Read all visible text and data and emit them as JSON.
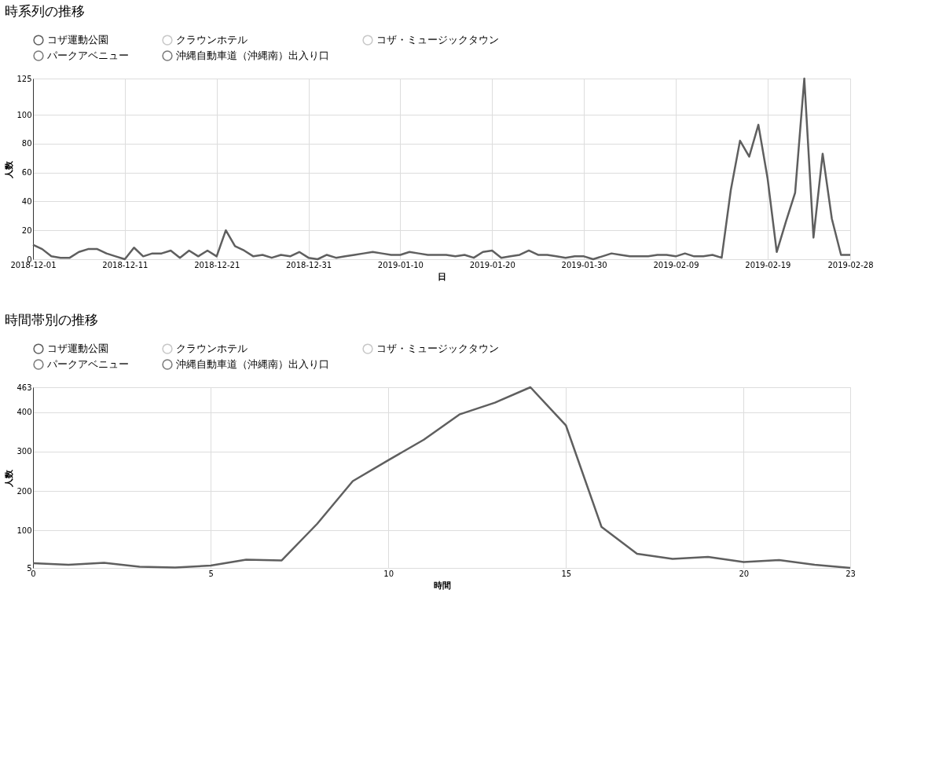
{
  "chart_data": [
    {
      "type": "line",
      "title": "時系列の推移",
      "xlabel": "日",
      "ylabel": "人数",
      "grid": true,
      "legend": "top",
      "x": [
        "2018-12-01",
        "2018-12-02",
        "2018-12-03",
        "2018-12-04",
        "2018-12-05",
        "2018-12-06",
        "2018-12-07",
        "2018-12-08",
        "2018-12-09",
        "2018-12-10",
        "2018-12-11",
        "2018-12-12",
        "2018-12-13",
        "2018-12-14",
        "2018-12-15",
        "2018-12-16",
        "2018-12-17",
        "2018-12-18",
        "2018-12-19",
        "2018-12-20",
        "2018-12-21",
        "2018-12-22",
        "2018-12-23",
        "2018-12-24",
        "2018-12-25",
        "2018-12-26",
        "2018-12-27",
        "2018-12-28",
        "2018-12-29",
        "2018-12-30",
        "2018-12-31",
        "2019-01-01",
        "2019-01-02",
        "2019-01-03",
        "2019-01-04",
        "2019-01-05",
        "2019-01-06",
        "2019-01-07",
        "2019-01-08",
        "2019-01-09",
        "2019-01-10",
        "2019-01-11",
        "2019-01-12",
        "2019-01-13",
        "2019-01-14",
        "2019-01-15",
        "2019-01-16",
        "2019-01-17",
        "2019-01-18",
        "2019-01-19",
        "2019-01-20",
        "2019-01-21",
        "2019-01-22",
        "2019-01-23",
        "2019-01-24",
        "2019-01-25",
        "2019-01-26",
        "2019-01-27",
        "2019-01-28",
        "2019-01-29",
        "2019-01-30",
        "2019-01-31",
        "2019-02-01",
        "2019-02-02",
        "2019-02-03",
        "2019-02-04",
        "2019-02-05",
        "2019-02-06",
        "2019-02-07",
        "2019-02-08",
        "2019-02-09",
        "2019-02-10",
        "2019-02-11",
        "2019-02-12",
        "2019-02-13",
        "2019-02-14",
        "2019-02-15",
        "2019-02-16",
        "2019-02-17",
        "2019-02-18",
        "2019-02-19",
        "2019-02-20",
        "2019-02-21",
        "2019-02-22",
        "2019-02-23",
        "2019-02-24",
        "2019-02-25",
        "2019-02-26",
        "2019-02-27",
        "2019-02-28"
      ],
      "xlim": [
        "2018-12-01",
        "2019-02-28"
      ],
      "xticks": [
        "2018-12-01",
        "2018-12-11",
        "2018-12-21",
        "2018-12-31",
        "2019-01-10",
        "2019-01-20",
        "2019-01-30",
        "2019-02-09",
        "2019-02-19",
        "2019-02-28"
      ],
      "ylim": [
        0,
        125
      ],
      "yticks": [
        0,
        20,
        40,
        60,
        80,
        100,
        125
      ],
      "series": [
        {
          "name": "コザ運動公園",
          "color": "#5f5f5f",
          "values": [
            10,
            7,
            2,
            1,
            1,
            5,
            7,
            7,
            4,
            2,
            0,
            8,
            2,
            4,
            4,
            6,
            1,
            6,
            2,
            6,
            2,
            20,
            9,
            6,
            2,
            3,
            1,
            3,
            2,
            5,
            1,
            0,
            3,
            1,
            2,
            3,
            4,
            5,
            4,
            3,
            3,
            5,
            4,
            3,
            3,
            3,
            2,
            3,
            1,
            5,
            6,
            1,
            2,
            3,
            6,
            3,
            3,
            2,
            1,
            2,
            2,
            0,
            2,
            4,
            3,
            2,
            2,
            2,
            3,
            3,
            2,
            4,
            2,
            2,
            3,
            1,
            48,
            82,
            71,
            93,
            56,
            5,
            26,
            46,
            125,
            15,
            73,
            28,
            3,
            3
          ]
        },
        {
          "name": "クラウンホテル",
          "color": "#c8c8c8",
          "values": [
            null,
            null,
            null,
            null,
            null,
            null,
            null,
            null,
            null,
            null,
            null,
            null,
            null,
            null,
            null,
            null,
            null,
            null,
            null,
            null,
            null,
            null,
            null,
            null,
            null,
            null,
            null,
            null,
            null,
            null,
            null,
            null,
            null,
            null,
            null,
            null,
            null,
            null,
            null,
            null,
            null,
            null,
            null,
            null,
            null,
            null,
            null,
            null,
            null,
            null,
            null,
            null,
            null,
            null,
            null,
            null,
            null,
            null,
            null,
            null,
            null,
            null,
            null,
            null,
            null,
            null,
            null,
            null,
            null,
            null,
            null,
            null,
            null,
            null,
            null,
            null,
            null,
            null,
            null,
            null,
            null,
            null,
            null,
            null,
            null,
            null,
            null,
            null,
            null,
            null
          ]
        },
        {
          "name": "コザ・ミュージックタウン",
          "color": "#c8c8c8",
          "values": [
            null,
            null,
            null,
            null,
            null,
            null,
            null,
            null,
            null,
            null,
            null,
            null,
            null,
            null,
            null,
            null,
            null,
            null,
            null,
            null,
            null,
            null,
            null,
            null,
            null,
            null,
            null,
            null,
            null,
            null,
            null,
            null,
            null,
            null,
            null,
            null,
            null,
            null,
            null,
            null,
            null,
            null,
            null,
            null,
            null,
            null,
            null,
            null,
            null,
            null,
            null,
            null,
            null,
            null,
            null,
            null,
            null,
            null,
            null,
            null,
            null,
            null,
            null,
            null,
            null,
            null,
            null,
            null,
            null,
            null,
            null,
            null,
            null,
            null,
            null,
            null,
            null,
            null,
            null,
            null,
            null,
            null,
            null,
            null,
            null,
            null,
            null,
            null,
            null,
            null
          ]
        },
        {
          "name": "パークアベニュー",
          "color": "#7a7a7a",
          "values": [
            null,
            null,
            null,
            null,
            null,
            null,
            null,
            null,
            null,
            null,
            null,
            null,
            null,
            null,
            null,
            null,
            null,
            null,
            null,
            null,
            null,
            null,
            null,
            null,
            null,
            null,
            null,
            null,
            null,
            null,
            null,
            null,
            null,
            null,
            null,
            null,
            null,
            null,
            null,
            null,
            null,
            null,
            null,
            null,
            null,
            null,
            null,
            null,
            null,
            null,
            null,
            null,
            null,
            null,
            null,
            null,
            null,
            null,
            null,
            null,
            null,
            null,
            null,
            null,
            null,
            null,
            null,
            null,
            null,
            null,
            null,
            null,
            null,
            null,
            null,
            null,
            null,
            null,
            null,
            null,
            null,
            null,
            null,
            null,
            null,
            null,
            null,
            null,
            null,
            null
          ]
        },
        {
          "name": "沖縄自動車道（沖縄南）出入り口",
          "color": "#7a7a7a",
          "values": [
            null,
            null,
            null,
            null,
            null,
            null,
            null,
            null,
            null,
            null,
            null,
            null,
            null,
            null,
            null,
            null,
            null,
            null,
            null,
            null,
            null,
            null,
            null,
            null,
            null,
            null,
            null,
            null,
            null,
            null,
            null,
            null,
            null,
            null,
            null,
            null,
            null,
            null,
            null,
            null,
            null,
            null,
            null,
            null,
            null,
            null,
            null,
            null,
            null,
            null,
            null,
            null,
            null,
            null,
            null,
            null,
            null,
            null,
            null,
            null,
            null,
            null,
            null,
            null,
            null,
            null,
            null,
            null,
            null,
            null,
            null,
            null,
            null,
            null,
            null,
            null,
            null,
            null,
            null,
            null,
            null,
            null,
            null,
            null,
            null,
            null,
            null,
            null,
            null,
            null
          ]
        }
      ]
    },
    {
      "type": "line",
      "title": "時間帯別の推移",
      "xlabel": "時間",
      "ylabel": "人数",
      "grid": true,
      "legend": "top",
      "x": [
        0,
        1,
        2,
        3,
        4,
        5,
        6,
        7,
        8,
        9,
        10,
        11,
        12,
        13,
        14,
        15,
        16,
        17,
        18,
        19,
        20,
        21,
        22,
        23
      ],
      "xlim": [
        0,
        23
      ],
      "xticks": [
        0,
        5,
        10,
        15,
        20,
        23
      ],
      "ylim": [
        5,
        463
      ],
      "yticks": [
        5,
        100,
        200,
        300,
        400,
        463
      ],
      "series": [
        {
          "name": "コザ運動公園",
          "color": "#5f5f5f",
          "values": [
            17,
            13,
            18,
            8,
            6,
            11,
            26,
            24,
            117,
            225,
            278,
            330,
            394,
            424,
            463,
            366,
            109,
            41,
            28,
            33,
            20,
            25,
            13,
            5
          ]
        },
        {
          "name": "クラウンホテル",
          "color": "#c8c8c8",
          "values": [
            null,
            null,
            null,
            null,
            null,
            null,
            null,
            null,
            null,
            null,
            null,
            null,
            null,
            null,
            null,
            null,
            null,
            null,
            null,
            null,
            null,
            null,
            null,
            null
          ]
        },
        {
          "name": "コザ・ミュージックタウン",
          "color": "#c8c8c8",
          "values": [
            null,
            null,
            null,
            null,
            null,
            null,
            null,
            null,
            null,
            null,
            null,
            null,
            null,
            null,
            null,
            null,
            null,
            null,
            null,
            null,
            null,
            null,
            null,
            null
          ]
        },
        {
          "name": "パークアベニュー",
          "color": "#7a7a7a",
          "values": [
            null,
            null,
            null,
            null,
            null,
            null,
            null,
            null,
            null,
            null,
            null,
            null,
            null,
            null,
            null,
            null,
            null,
            null,
            null,
            null,
            null,
            null,
            null,
            null
          ]
        },
        {
          "name": "沖縄自動車道（沖縄南）出入り口",
          "color": "#7a7a7a",
          "values": [
            null,
            null,
            null,
            null,
            null,
            null,
            null,
            null,
            null,
            null,
            null,
            null,
            null,
            null,
            null,
            null,
            null,
            null,
            null,
            null,
            null,
            null,
            null,
            null
          ]
        }
      ]
    }
  ]
}
